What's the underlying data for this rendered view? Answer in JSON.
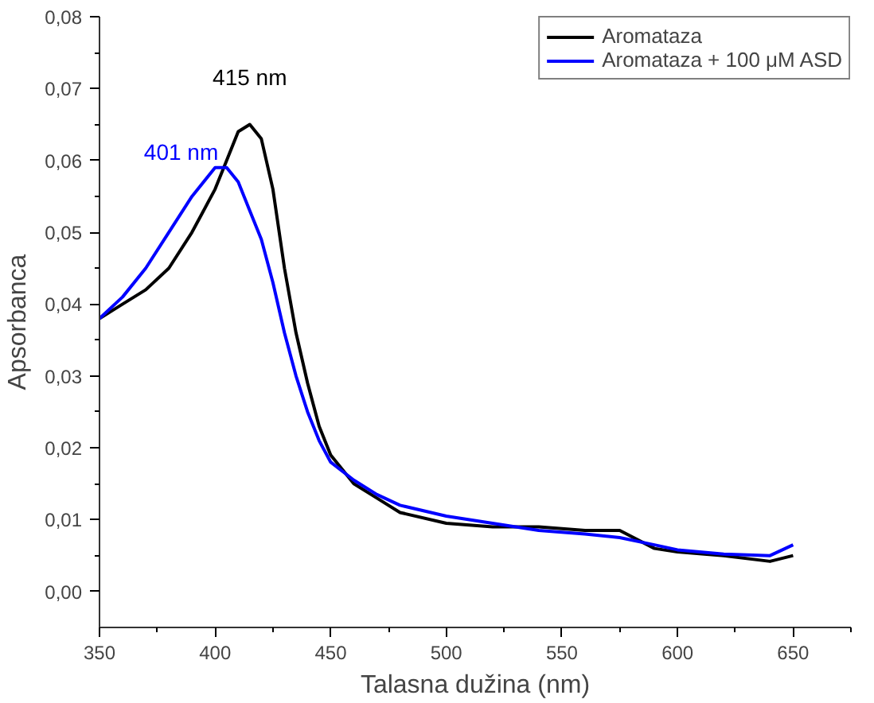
{
  "chart_data": {
    "type": "line",
    "xlabel": "Talasna dužina (nm)",
    "ylabel": "Apsorbanca",
    "x": [
      350,
      360,
      370,
      380,
      390,
      400,
      405,
      410,
      415,
      420,
      425,
      430,
      435,
      440,
      445,
      450,
      460,
      470,
      480,
      500,
      520,
      540,
      560,
      575,
      590,
      600,
      620,
      640,
      650
    ],
    "series": [
      {
        "name": "Aromataza",
        "color": "#000000",
        "values": [
          0.038,
          0.04,
          0.042,
          0.045,
          0.05,
          0.056,
          0.06,
          0.064,
          0.065,
          0.063,
          0.056,
          0.045,
          0.036,
          0.029,
          0.023,
          0.019,
          0.015,
          0.013,
          0.011,
          0.0095,
          0.009,
          0.009,
          0.0085,
          0.0085,
          0.006,
          0.0055,
          0.005,
          0.0042,
          0.005
        ]
      },
      {
        "name": "Aromataza + 100 μM ASD",
        "color": "#0000ff",
        "values": [
          0.038,
          0.041,
          0.045,
          0.05,
          0.055,
          0.059,
          0.059,
          0.057,
          0.053,
          0.049,
          0.043,
          0.036,
          0.03,
          0.025,
          0.021,
          0.018,
          0.0155,
          0.0135,
          0.012,
          0.0105,
          0.0095,
          0.0085,
          0.008,
          0.0075,
          0.0065,
          0.0058,
          0.0052,
          0.005,
          0.0065
        ]
      }
    ],
    "annotations": [
      "415 nm",
      "401 nm"
    ],
    "xlim": [
      350,
      675
    ],
    "xticks": [
      350,
      400,
      450,
      500,
      550,
      600,
      650
    ],
    "ylim": [
      -0.005,
      0.08
    ],
    "yticks": [
      {
        "value": 0,
        "label": "0,00"
      },
      {
        "value": 0.01,
        "label": "0,01"
      },
      {
        "value": 0.02,
        "label": "0,02"
      },
      {
        "value": 0.03,
        "label": "0,03"
      },
      {
        "value": 0.04,
        "label": "0,04"
      },
      {
        "value": 0.05,
        "label": "0,05"
      },
      {
        "value": 0.06,
        "label": "0,06"
      },
      {
        "value": 0.07,
        "label": "0,07"
      },
      {
        "value": 0.08,
        "label": "0,08"
      }
    ],
    "legend": "top right",
    "grid": false,
    "marker": "none",
    "line_style": "solid"
  }
}
